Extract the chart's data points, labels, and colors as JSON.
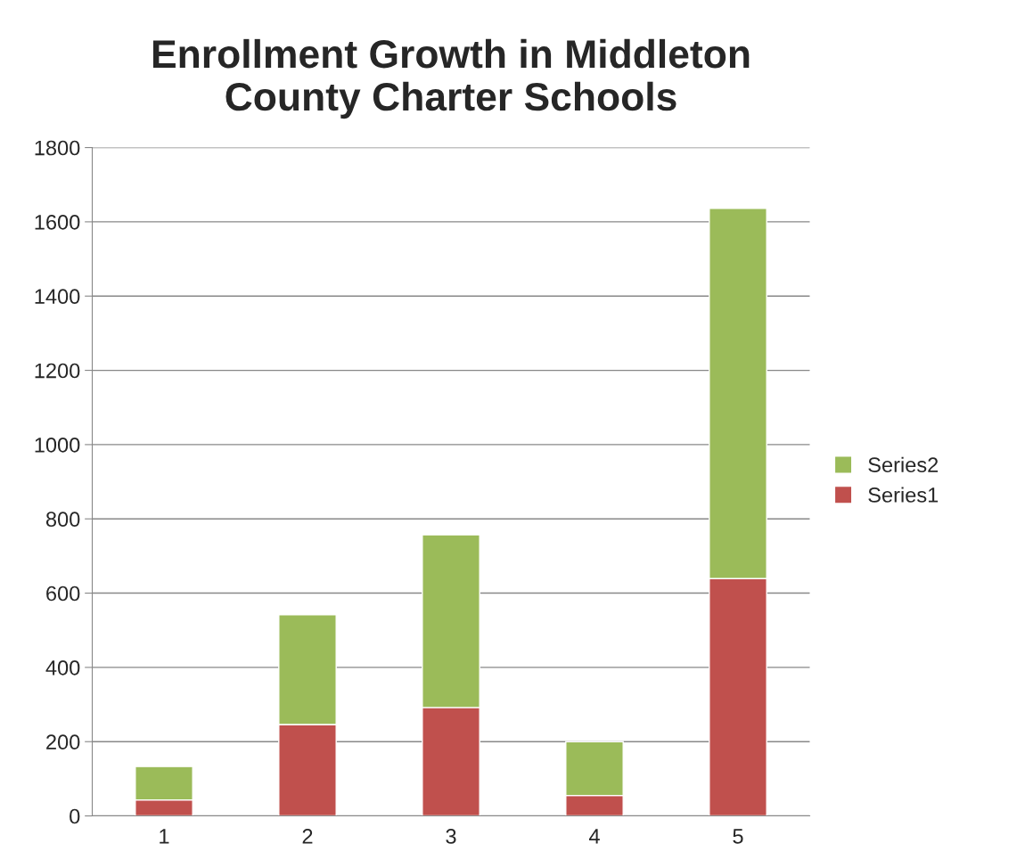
{
  "chart_data": {
    "type": "bar",
    "title": "Enrollment Growth in Middleton\nCounty Charter Schools",
    "categories": [
      "1",
      "2",
      "3",
      "4",
      "5"
    ],
    "series": [
      {
        "name": "Series1",
        "color": "#c0504d",
        "values": [
          43,
          246,
          292,
          55,
          639
        ]
      },
      {
        "name": "Series2",
        "color": "#9bbb59",
        "values": [
          90,
          296,
          465,
          145,
          997
        ]
      }
    ],
    "stacked": true,
    "ylim": [
      0,
      1800
    ],
    "yticks": [
      0,
      200,
      400,
      600,
      800,
      1000,
      1200,
      1400,
      1600,
      1800
    ],
    "grid": "y",
    "legend": "right"
  }
}
